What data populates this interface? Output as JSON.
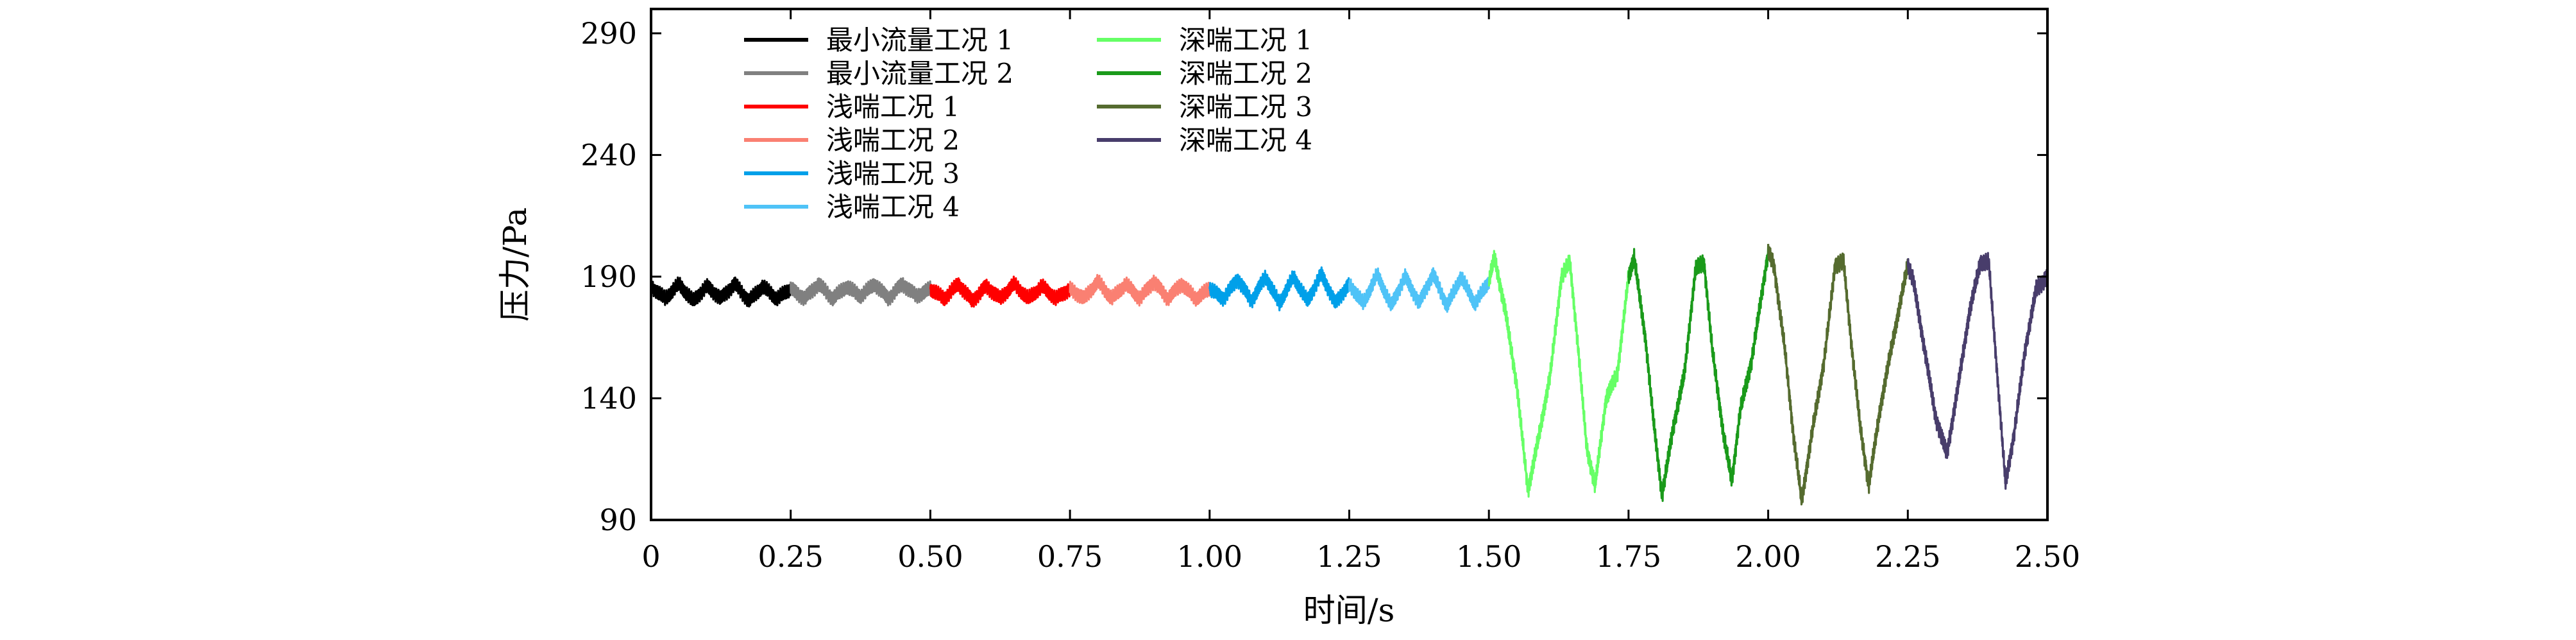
{
  "chart_data": {
    "type": "line",
    "title": "",
    "xlabel": "时间/s",
    "ylabel": "压力/Pa",
    "xlim": [
      0,
      2.5
    ],
    "ylim": [
      90,
      300
    ],
    "xticks": [
      "0",
      "0.25",
      "0.50",
      "0.75",
      "1.00",
      "1.25",
      "1.50",
      "1.75",
      "2.00",
      "2.25",
      "2.50"
    ],
    "xtick_values": [
      0,
      0.25,
      0.5,
      0.75,
      1.0,
      1.25,
      1.5,
      1.75,
      2.0,
      2.25,
      2.5
    ],
    "yticks": [
      "90",
      "140",
      "190",
      "240",
      "290"
    ],
    "ytick_values": [
      90,
      140,
      190,
      240,
      290
    ],
    "grid": false,
    "legend_position": "top-left, two columns",
    "series": [
      {
        "name": "最小流量工况 1",
        "color": "#000000",
        "x_range": [
          0.0,
          0.25
        ],
        "points": [
          [
            0.0,
            186
          ],
          [
            0.025,
            181
          ],
          [
            0.05,
            187
          ],
          [
            0.075,
            180
          ],
          [
            0.1,
            186
          ],
          [
            0.125,
            181
          ],
          [
            0.15,
            187
          ],
          [
            0.175,
            180
          ],
          [
            0.2,
            186
          ],
          [
            0.225,
            181
          ],
          [
            0.25,
            185
          ]
        ]
      },
      {
        "name": "最小流量工况 2",
        "color": "#808080",
        "x_range": [
          0.25,
          0.5
        ],
        "points": [
          [
            0.25,
            185
          ],
          [
            0.275,
            181
          ],
          [
            0.3,
            187
          ],
          [
            0.325,
            181
          ],
          [
            0.35,
            186
          ],
          [
            0.375,
            182
          ],
          [
            0.4,
            187
          ],
          [
            0.425,
            181
          ],
          [
            0.45,
            187
          ],
          [
            0.475,
            182
          ],
          [
            0.5,
            185
          ]
        ]
      },
      {
        "name": "浅喘工况 1",
        "color": "#ff0000",
        "x_range": [
          0.5,
          0.75
        ],
        "points": [
          [
            0.5,
            185
          ],
          [
            0.525,
            181
          ],
          [
            0.55,
            187
          ],
          [
            0.575,
            180
          ],
          [
            0.6,
            186
          ],
          [
            0.625,
            181
          ],
          [
            0.65,
            187
          ],
          [
            0.675,
            181
          ],
          [
            0.7,
            186
          ],
          [
            0.725,
            181
          ],
          [
            0.75,
            185
          ]
        ]
      },
      {
        "name": "浅喘工况 2",
        "color": "#fa8072",
        "x_range": [
          0.75,
          1.0
        ],
        "points": [
          [
            0.75,
            185
          ],
          [
            0.775,
            181
          ],
          [
            0.8,
            188
          ],
          [
            0.825,
            181
          ],
          [
            0.85,
            187
          ],
          [
            0.875,
            181
          ],
          [
            0.9,
            188
          ],
          [
            0.925,
            181
          ],
          [
            0.95,
            187
          ],
          [
            0.975,
            181
          ],
          [
            1.0,
            185
          ]
        ]
      },
      {
        "name": "浅喘工况 3",
        "color": "#00a0e9",
        "x_range": [
          1.0,
          1.25
        ],
        "points": [
          [
            1.0,
            185
          ],
          [
            1.025,
            181
          ],
          [
            1.05,
            189
          ],
          [
            1.075,
            180
          ],
          [
            1.1,
            190
          ],
          [
            1.125,
            179
          ],
          [
            1.15,
            190
          ],
          [
            1.175,
            180
          ],
          [
            1.2,
            191
          ],
          [
            1.225,
            179
          ],
          [
            1.25,
            187
          ]
        ]
      },
      {
        "name": "浅喘工况 4",
        "color": "#4fc3f7",
        "x_range": [
          1.25,
          1.5
        ],
        "points": [
          [
            1.25,
            187
          ],
          [
            1.275,
            179
          ],
          [
            1.3,
            191
          ],
          [
            1.325,
            178
          ],
          [
            1.35,
            190
          ],
          [
            1.375,
            179
          ],
          [
            1.4,
            191
          ],
          [
            1.425,
            178
          ],
          [
            1.45,
            190
          ],
          [
            1.475,
            179
          ],
          [
            1.5,
            188
          ]
        ]
      },
      {
        "name": "深喘工况 1",
        "color": "#66ff66",
        "x_range": [
          1.5,
          1.75
        ],
        "points": [
          [
            1.5,
            188
          ],
          [
            1.51,
            198
          ],
          [
            1.53,
            175
          ],
          [
            1.55,
            145
          ],
          [
            1.57,
            102
          ],
          [
            1.59,
            125
          ],
          [
            1.61,
            150
          ],
          [
            1.63,
            190
          ],
          [
            1.645,
            196
          ],
          [
            1.66,
            160
          ],
          [
            1.675,
            120
          ],
          [
            1.69,
            104
          ],
          [
            1.71,
            140
          ],
          [
            1.73,
            150
          ],
          [
            1.75,
            190
          ]
        ]
      },
      {
        "name": "深喘工况 2",
        "color": "#1a9a1a",
        "x_range": [
          1.75,
          2.0
        ],
        "points": [
          [
            1.75,
            190
          ],
          [
            1.76,
            198
          ],
          [
            1.78,
            165
          ],
          [
            1.795,
            130
          ],
          [
            1.81,
            100
          ],
          [
            1.83,
            128
          ],
          [
            1.85,
            150
          ],
          [
            1.87,
            193
          ],
          [
            1.885,
            196
          ],
          [
            1.9,
            160
          ],
          [
            1.92,
            125
          ],
          [
            1.935,
            106
          ],
          [
            1.95,
            135
          ],
          [
            1.97,
            155
          ],
          [
            2.0,
            200
          ]
        ]
      },
      {
        "name": "深喘工况 3",
        "color": "#556b2f",
        "x_range": [
          2.0,
          2.25
        ],
        "points": [
          [
            2.0,
            200
          ],
          [
            2.01,
            195
          ],
          [
            2.03,
            160
          ],
          [
            2.045,
            125
          ],
          [
            2.06,
            98
          ],
          [
            2.08,
            128
          ],
          [
            2.1,
            155
          ],
          [
            2.12,
            195
          ],
          [
            2.135,
            196
          ],
          [
            2.15,
            160
          ],
          [
            2.165,
            128
          ],
          [
            2.18,
            104
          ],
          [
            2.2,
            135
          ],
          [
            2.22,
            160
          ],
          [
            2.25,
            195
          ]
        ]
      },
      {
        "name": "深喘工况 4",
        "color": "#483d6b",
        "x_range": [
          2.25,
          2.5
        ],
        "points": [
          [
            2.25,
            195
          ],
          [
            2.26,
            188
          ],
          [
            2.28,
            160
          ],
          [
            2.3,
            132
          ],
          [
            2.32,
            117
          ],
          [
            2.34,
            145
          ],
          [
            2.36,
            175
          ],
          [
            2.38,
            196
          ],
          [
            2.395,
            196
          ],
          [
            2.41,
            150
          ],
          [
            2.425,
            105
          ],
          [
            2.44,
            125
          ],
          [
            2.46,
            160
          ],
          [
            2.48,
            185
          ],
          [
            2.5,
            190
          ]
        ]
      }
    ]
  }
}
